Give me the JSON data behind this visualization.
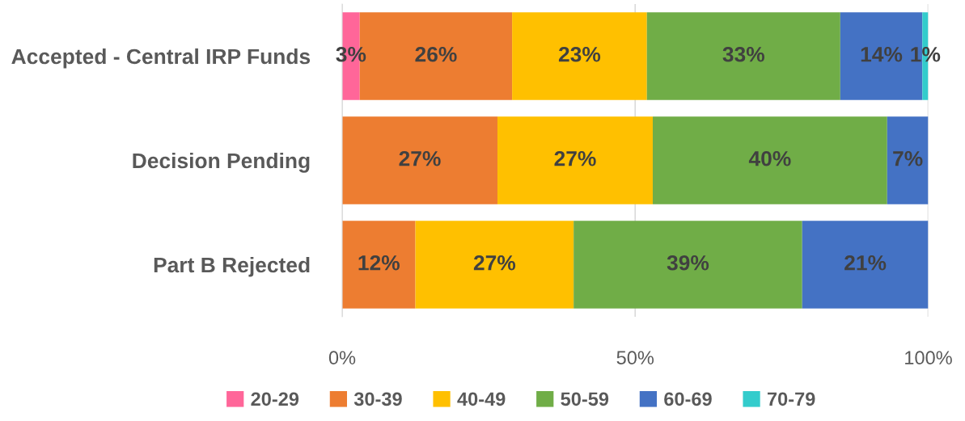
{
  "chart_data": {
    "type": "bar",
    "orientation": "horizontal",
    "stacked": true,
    "categories": [
      "Accepted - Central IRP Funds",
      "Decision Pending",
      "Part B Rejected"
    ],
    "series": [
      {
        "name": "20-29",
        "color": "#ff6699",
        "values": [
          3,
          null,
          null
        ],
        "value_labels": [
          "3%",
          null,
          null
        ]
      },
      {
        "name": "30-39",
        "color": "#ed7d31",
        "values": [
          26,
          26.5,
          12.5
        ],
        "value_labels": [
          "26%",
          "27%",
          "12%"
        ]
      },
      {
        "name": "40-49",
        "color": "#ffc000",
        "values": [
          23,
          26.5,
          27
        ],
        "value_labels": [
          "23%",
          "27%",
          "27%"
        ]
      },
      {
        "name": "50-59",
        "color": "#70ad47",
        "values": [
          33,
          40,
          39
        ],
        "value_labels": [
          "33%",
          "40%",
          "39%"
        ]
      },
      {
        "name": "60-69",
        "color": "#4472c4",
        "values": [
          14,
          7,
          21.5
        ],
        "value_labels": [
          "14%",
          "7%",
          "21%"
        ]
      },
      {
        "name": "70-79",
        "color": "#33cccc",
        "values": [
          1,
          null,
          null
        ],
        "value_labels": [
          "1%",
          null,
          null
        ]
      }
    ],
    "xlim": [
      0,
      100
    ],
    "xticks": [
      {
        "value": 0,
        "label": "0%"
      },
      {
        "value": 50,
        "label": "50%"
      },
      {
        "value": 100,
        "label": "100%"
      }
    ],
    "grid": "x",
    "legend": "bottom"
  }
}
